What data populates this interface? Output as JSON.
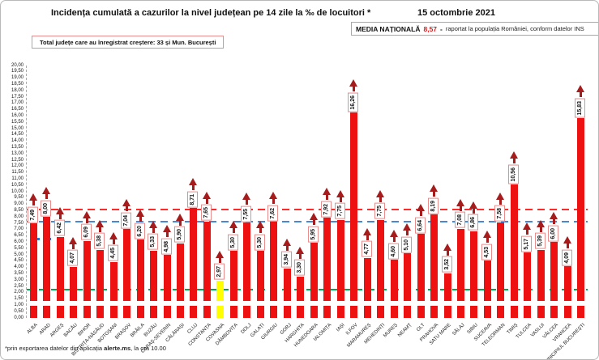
{
  "header": {
    "title": "Incidența cumulată a cazurilor la nivel județean pe 14 zile la ‰ de locuitori *",
    "date": "15 octombrie 2021",
    "national_average": {
      "label": "MEDIA NAȚIONALĂ",
      "value": "8,57",
      "separator": "-",
      "note": "raportat la populația României, conform datelor INS"
    },
    "growth_box": "Total județe care au înregistrat creștere:  33 și Mun. București"
  },
  "footer": {
    "prefix": "*prin exportarea datelor din aplicația ",
    "bold": "alerte.ms",
    "suffix": ", la ora 10.00"
  },
  "chart_data": {
    "type": "bar",
    "title": "Incidența cumulată a cazurilor la nivel județean pe 14 zile la ‰ de locuitori",
    "unit": "‰ locuitori",
    "categories": [
      "ALBA",
      "ARAD",
      "ARGEȘ",
      "BACĂU",
      "BIHOR",
      "BISTRIȚA-NĂSĂUD",
      "BOTOȘANI",
      "BRAȘOV",
      "BRĂILA",
      "BUZĂU",
      "CARAȘ-SEVERIN",
      "CĂLĂRAȘI",
      "CLUJ",
      "CONSTANȚA",
      "COVASNA",
      "DÂMBOVIȚA",
      "DOLJ",
      "GALAȚI",
      "GIURGIU",
      "GORJ",
      "HARGHITA",
      "HUNEDOARA",
      "IALOMIȚA",
      "IAȘI",
      "ILFOV",
      "MARAMUREȘ",
      "MEHEDINȚI",
      "MUREȘ",
      "NEAMȚ",
      "OLT",
      "PRAHOVA",
      "SATU MARE",
      "SĂLAJ",
      "SIBIU",
      "SUCEAVA",
      "TELEORMAN",
      "TIMIȘ",
      "TULCEA",
      "VASLUI",
      "VÂLCEA",
      "VRANCEA",
      "MUNICIPIUL BUCUREȘTI"
    ],
    "values": [
      7.49,
      8.0,
      6.42,
      4.07,
      6.09,
      5.38,
      4.45,
      7.04,
      6.2,
      5.33,
      4.98,
      5.9,
      8.71,
      7.65,
      2.97,
      5.3,
      7.55,
      5.3,
      7.62,
      3.94,
      3.3,
      5.95,
      7.92,
      7.75,
      16.26,
      4.77,
      7.75,
      4.6,
      5.1,
      6.64,
      8.19,
      3.52,
      7.08,
      6.86,
      4.53,
      7.58,
      10.56,
      5.17,
      5.39,
      6.0,
      4.09,
      15.83
    ],
    "highlight_index": 14,
    "bar_color": "#ee1111",
    "highlight_color": "#ffff00",
    "arrow_color": "#a61c1c",
    "label_box_border": "#e98c8c",
    "ylim": [
      0,
      20
    ],
    "y_tick_step": 0.5,
    "decimal_separator": ",",
    "grid": false,
    "legend": false,
    "reference_lines": [
      {
        "value": 8.57,
        "color": "#ff2a2a",
        "label": "media națională 8,57"
      },
      {
        "value": 7.6,
        "color": "#4a86d8",
        "label": ""
      },
      {
        "value": 2.25,
        "color": "#00a550",
        "label": ""
      }
    ]
  }
}
